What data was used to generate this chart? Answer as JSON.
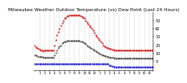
{
  "title": "Milwaukee Weather Outdoor Temperature (vs) Dew Point (Last 24 Hours)",
  "title_fontsize": 4.2,
  "background_color": "#ffffff",
  "ylim": [
    -10,
    60
  ],
  "yticks": [
    0,
    10,
    20,
    30,
    40,
    50
  ],
  "ytick_labels": [
    "0",
    "10",
    "20",
    "30",
    "40",
    "50"
  ],
  "ytick_fontsize": 3.5,
  "xtick_fontsize": 3.0,
  "temp_color": "#cc0000",
  "dew_color": "#0000cc",
  "mid_color": "#000000",
  "grid_color": "#999999",
  "temp_values": [
    20,
    18,
    17,
    16,
    15,
    14,
    14,
    13,
    14,
    14,
    14,
    14,
    14,
    14,
    14,
    14,
    20,
    26,
    32,
    36,
    40,
    44,
    47,
    50,
    52,
    53,
    55,
    55,
    56,
    56,
    56,
    56,
    56,
    56,
    56,
    56,
    56,
    55,
    54,
    53,
    52,
    50,
    48,
    46,
    44,
    42,
    40,
    38,
    35,
    32,
    30,
    28,
    26,
    24,
    22,
    20,
    19,
    18,
    17,
    17,
    16,
    16,
    15,
    15,
    14,
    14,
    14,
    14,
    14,
    14,
    14,
    14,
    14,
    14,
    14,
    14,
    14,
    14,
    14,
    14,
    14,
    14,
    14,
    14,
    14,
    14,
    14,
    14,
    14,
    14,
    14,
    14,
    14,
    14,
    14,
    14
  ],
  "dew_values": [
    -3,
    -3,
    -3,
    -3,
    -3,
    -3,
    -3,
    -3,
    -3,
    -3,
    -3,
    -3,
    -3,
    -3,
    -3,
    -3,
    -3,
    -3,
    -3,
    -3,
    -3,
    -3,
    -3,
    -3,
    -3,
    -3,
    -3,
    -3,
    -3,
    -3,
    -3,
    -3,
    -3,
    -3,
    -3,
    -3,
    -3,
    -3,
    -3,
    -3,
    -3,
    -3,
    -3,
    -3,
    -3,
    -3,
    -3,
    -3,
    -3,
    -3,
    -3,
    -3,
    -3,
    -3,
    -3,
    -3,
    -3,
    -3,
    -3,
    -3,
    -5,
    -5,
    -6,
    -6,
    -7,
    -7,
    -7,
    -7,
    -7,
    -7,
    -7,
    -7,
    -7,
    -7,
    -7,
    -7,
    -7,
    -7,
    -7,
    -7,
    -7,
    -7,
    -7,
    -7,
    -7,
    -7,
    -7,
    -7,
    -7,
    -7,
    -7,
    -7,
    -7,
    -7,
    -7,
    -7
  ],
  "mid_values": [
    8,
    8,
    7,
    6,
    6,
    6,
    6,
    5,
    5,
    5,
    5,
    5,
    5,
    5,
    5,
    5,
    8,
    11,
    14,
    17,
    19,
    20,
    22,
    23,
    24,
    24,
    25,
    25,
    25,
    25,
    25,
    25,
    25,
    25,
    25,
    25,
    25,
    24,
    24,
    23,
    22,
    21,
    20,
    19,
    18,
    17,
    16,
    15,
    14,
    13,
    12,
    11,
    10,
    9,
    8,
    8,
    7,
    7,
    6,
    6,
    5,
    5,
    5,
    5,
    4,
    4,
    4,
    4,
    4,
    4,
    4,
    4,
    4,
    4,
    4,
    4,
    4,
    4,
    4,
    4,
    4,
    4,
    4,
    4,
    4,
    4,
    4,
    4,
    4,
    4,
    4,
    4,
    4,
    4,
    4,
    4
  ],
  "x_tick_positions": [
    0,
    4,
    8,
    12,
    16,
    20,
    24,
    28,
    32,
    36,
    40,
    44,
    48,
    52,
    56,
    60,
    64,
    68,
    72,
    76,
    80,
    84,
    88,
    92,
    95
  ],
  "x_tick_labels": [
    "",
    "1",
    "2",
    "3",
    "4",
    "5",
    "6",
    "7",
    "8",
    "9",
    "10",
    "11",
    "12",
    "1",
    "2",
    "3",
    "4",
    "5",
    "6",
    "7",
    "8",
    "9",
    "10",
    "11",
    ""
  ],
  "grid_positions": [
    4,
    8,
    12,
    16,
    20,
    24,
    28,
    32,
    36,
    40,
    44,
    48,
    52,
    56,
    60,
    64,
    68,
    72,
    76,
    80,
    84,
    88,
    92
  ]
}
